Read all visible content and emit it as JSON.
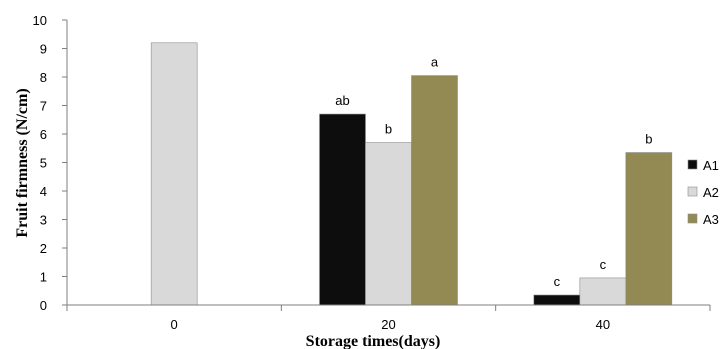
{
  "chart_data": {
    "type": "bar",
    "title": "",
    "xlabel": "Storage times(days)",
    "ylabel": "Fruit firmness (N/cm)",
    "ylim": [
      0,
      10
    ],
    "yticks": [
      0,
      1,
      2,
      3,
      4,
      5,
      6,
      7,
      8,
      9,
      10
    ],
    "categories": [
      "0",
      "20",
      "40"
    ],
    "series": [
      {
        "name": "A1",
        "color": "#0d0d0d",
        "values": [
          null,
          6.7,
          0.35
        ],
        "labels": [
          "",
          "ab",
          "c"
        ]
      },
      {
        "name": "A2",
        "color": "#d9d9d9",
        "values": [
          9.2,
          5.7,
          0.95
        ],
        "labels": [
          "",
          "b",
          "c"
        ]
      },
      {
        "name": "A3",
        "color": "#938953",
        "values": [
          null,
          8.05,
          5.35
        ],
        "labels": [
          "",
          "a",
          "b"
        ]
      }
    ],
    "grid": false,
    "legend": "right"
  }
}
